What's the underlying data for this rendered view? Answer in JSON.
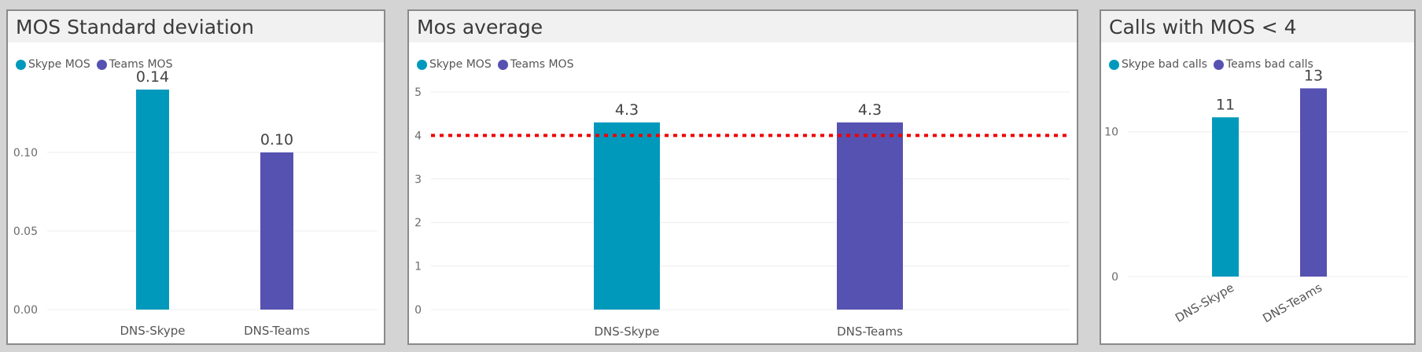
{
  "colors": {
    "skype": "#0099bc",
    "teams": "#5652b1",
    "threshold": "#ee0000",
    "grid": "#ececec"
  },
  "panels": {
    "sd": {
      "title": "MOS Standard deviation",
      "legend": [
        "Skype MOS",
        "Teams MOS"
      ]
    },
    "avg": {
      "title": "Mos average",
      "legend": [
        "Skype MOS",
        "Teams MOS"
      ]
    },
    "bad": {
      "title": "Calls with MOS < 4",
      "legend": [
        "Skype bad calls",
        "Teams bad calls"
      ]
    }
  },
  "chart_data": [
    {
      "type": "bar",
      "title": "MOS Standard deviation",
      "categories": [
        "DNS-Skype",
        "DNS-Teams"
      ],
      "values": [
        0.14,
        0.1
      ],
      "value_labels": [
        "0.14",
        "0.10"
      ],
      "series": [
        {
          "name": "Skype MOS"
        },
        {
          "name": "Teams MOS"
        }
      ],
      "ylim": [
        0,
        0.15
      ],
      "yticks": [
        "0.00",
        "0.05",
        "0.10"
      ],
      "ytick_values": [
        0,
        0.05,
        0.1
      ],
      "grid": true,
      "legend_position": "top-left"
    },
    {
      "type": "bar",
      "title": "Mos average",
      "categories": [
        "DNS-Skype",
        "DNS-Teams"
      ],
      "values": [
        4.3,
        4.3
      ],
      "value_labels": [
        "4.3",
        "4.3"
      ],
      "series": [
        {
          "name": "Skype MOS"
        },
        {
          "name": "Teams MOS"
        }
      ],
      "ylim": [
        0,
        5
      ],
      "yticks": [
        "0",
        "1",
        "2",
        "3",
        "4",
        "5"
      ],
      "ytick_values": [
        0,
        1,
        2,
        3,
        4,
        5
      ],
      "reference_line": 4,
      "grid": true,
      "legend_position": "top-left"
    },
    {
      "type": "bar",
      "title": "Calls with MOS < 4",
      "categories": [
        "DNS-Skype",
        "DNS-Teams"
      ],
      "values": [
        11,
        13
      ],
      "value_labels": [
        "11",
        "13"
      ],
      "series": [
        {
          "name": "Skype bad calls"
        },
        {
          "name": "Teams bad calls"
        }
      ],
      "ylim": [
        0,
        14
      ],
      "yticks": [
        "0",
        "10"
      ],
      "ytick_values": [
        0,
        10
      ],
      "grid": true,
      "legend_position": "top-left"
    }
  ]
}
